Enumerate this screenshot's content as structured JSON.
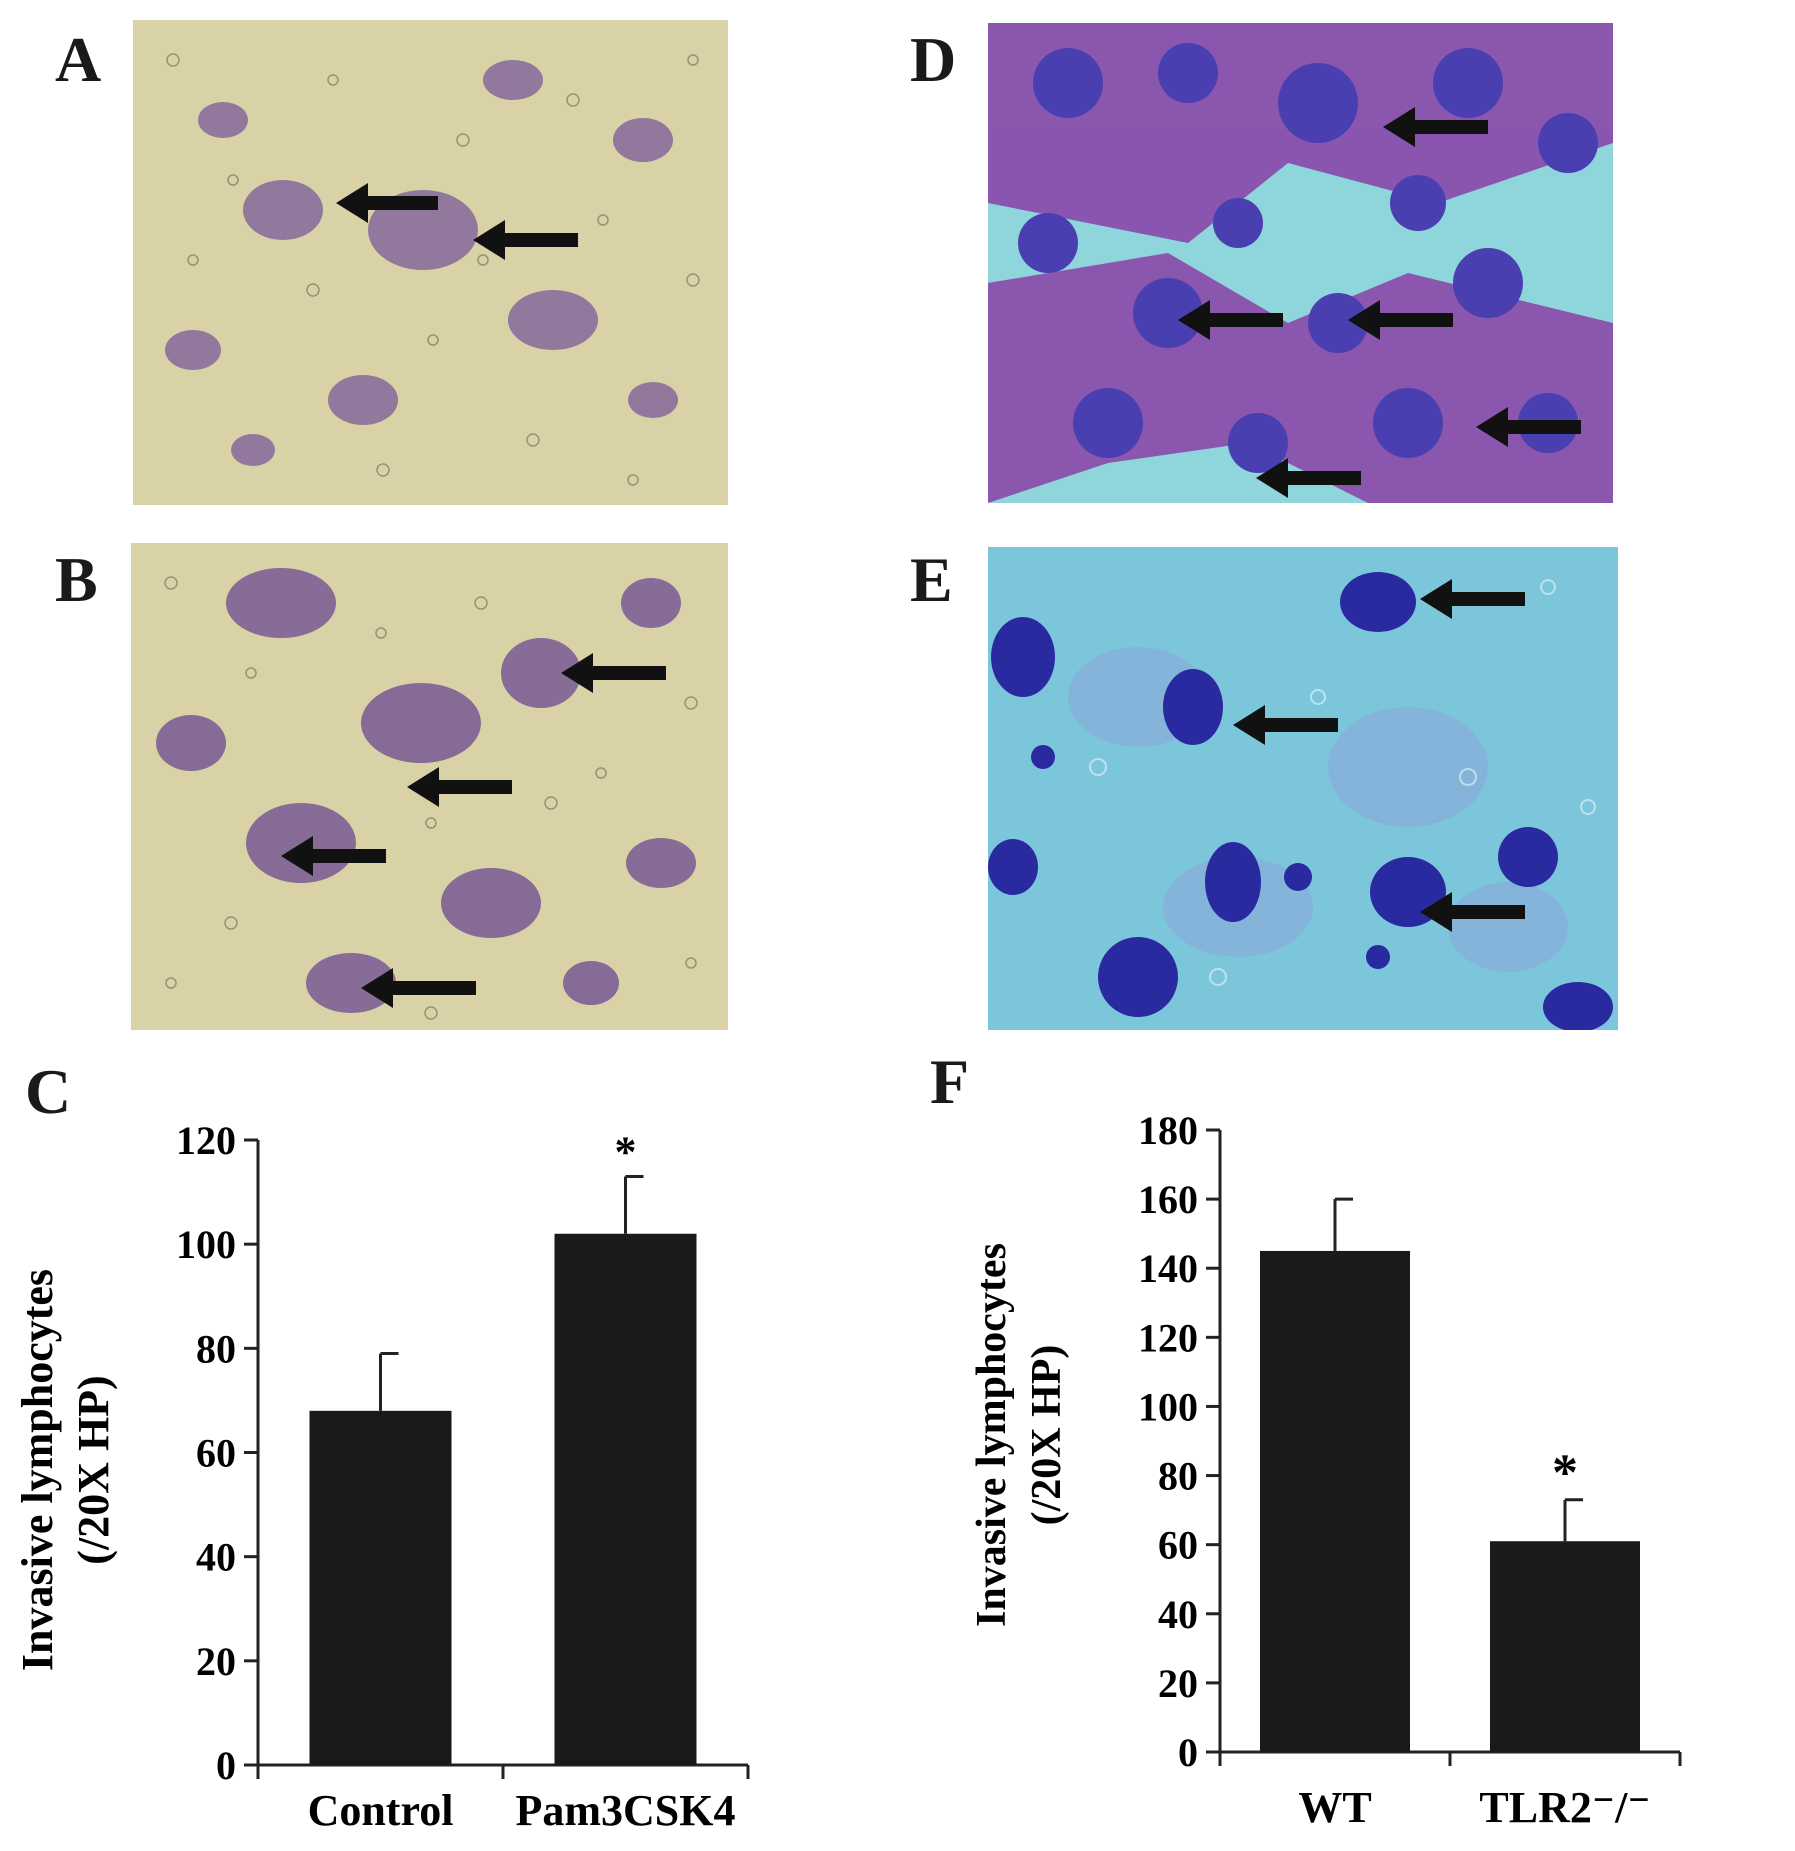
{
  "panels": {
    "A": {
      "letter": "A"
    },
    "B": {
      "letter": "B"
    },
    "C": {
      "letter": "C"
    },
    "D": {
      "letter": "D"
    },
    "E": {
      "letter": "E"
    },
    "F": {
      "letter": "F"
    }
  },
  "colors": {
    "stain_violet": "#7a5a9a",
    "background_A_B": "#d9d2a6",
    "background_D": "#8fd6dc",
    "cells_D": "#4a3fb0",
    "background_E": "#7cc6dc",
    "cells_E": "#2a2aa0",
    "bar": "#1a1a1a"
  },
  "chart_data": [
    {
      "panel": "C",
      "type": "bar",
      "categories": [
        "Control",
        "Pam3CSK4"
      ],
      "values": [
        68,
        102
      ],
      "errors": [
        11,
        11
      ],
      "significance": [
        "",
        "*"
      ],
      "ylabel_line1": "Invasive lymphocytes",
      "ylabel_line2": "(/20X HP)",
      "ylim": [
        0,
        120
      ],
      "yticks": [
        0,
        20,
        40,
        60,
        80,
        100,
        120
      ]
    },
    {
      "panel": "F",
      "type": "bar",
      "categories": [
        "WT",
        "TLR2⁻/⁻"
      ],
      "values": [
        145,
        61
      ],
      "errors": [
        15,
        12
      ],
      "significance": [
        "",
        "*"
      ],
      "ylabel_line1": "Invasive lymphocytes",
      "ylabel_line2": "(/20X HP)",
      "ylim": [
        0,
        180
      ],
      "yticks": [
        0,
        20,
        40,
        60,
        80,
        100,
        120,
        140,
        160,
        180
      ]
    }
  ]
}
